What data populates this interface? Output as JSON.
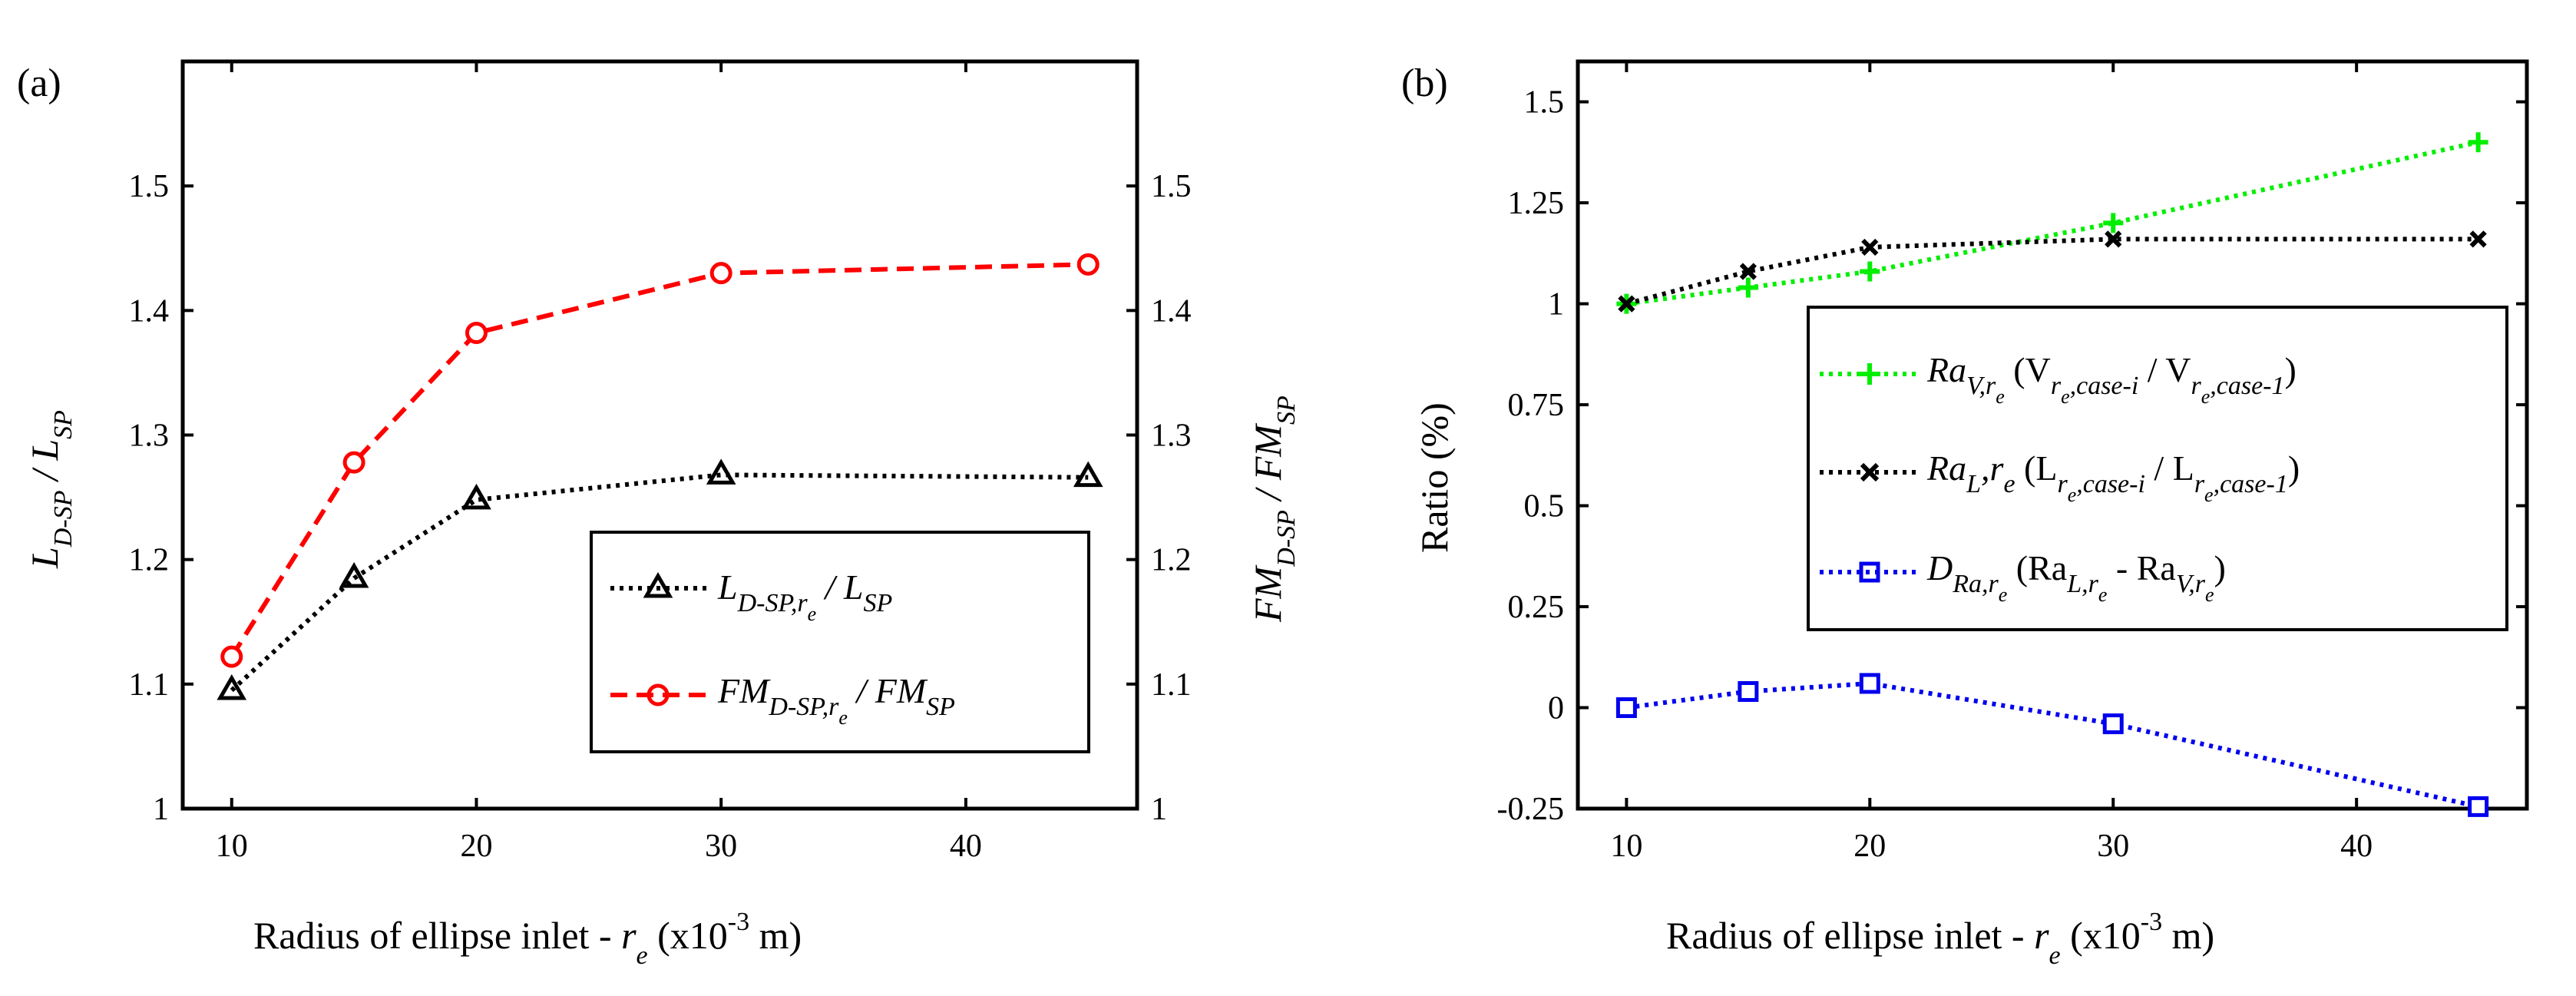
{
  "chart_data": [
    {
      "panel": "(a)",
      "type": "line",
      "x": [
        10,
        15,
        20,
        30,
        45
      ],
      "xlim": [
        8,
        47
      ],
      "xticks": [
        "10",
        "20",
        "30",
        "40"
      ],
      "xlabel": {
        "main": "Radius of ellipse inlet - ",
        "var": "r",
        "sub": "e",
        "unit": " (x10",
        "exp": "-3",
        "unit_end": " m)"
      },
      "ylim": [
        1,
        1.6
      ],
      "yticks": [
        "1",
        "1.1",
        "1.2",
        "1.3",
        "1.4",
        "1.5"
      ],
      "ylabel_left": {
        "main": "L",
        "sub": "D-SP",
        "rest": " / L",
        "sub2": "SP"
      },
      "ylabel_right": {
        "main": "FM",
        "sub": "D-SP",
        "rest": " / FM",
        "sub2": "SP"
      },
      "grid": false,
      "legend_position": "bottom-right",
      "series": [
        {
          "legend": {
            "main": "L",
            "sub": "D-SP,r",
            "subsub": "e",
            "rest": " / L",
            "sub2": "SP"
          },
          "values": [
            1.095,
            1.185,
            1.248,
            1.268,
            1.266
          ],
          "color": "#000000",
          "marker": "triangle",
          "dash": "dotted"
        },
        {
          "legend": {
            "main": "FM",
            "sub": "D-SP,r",
            "subsub": "e",
            "rest": " / FM",
            "sub2": "SP"
          },
          "values": [
            1.122,
            1.278,
            1.382,
            1.43,
            1.437
          ],
          "color": "#ff0000",
          "marker": "circle",
          "dash": "dashed"
        }
      ]
    },
    {
      "panel": "(b)",
      "type": "line",
      "x": [
        10,
        15,
        20,
        30,
        45
      ],
      "xlim": [
        8,
        47
      ],
      "xticks": [
        "10",
        "20",
        "30",
        "40"
      ],
      "xlabel": {
        "main": "Radius of ellipse inlet - ",
        "var": "r",
        "sub": "e",
        "unit": " (x10",
        "exp": "-3",
        "unit_end": " m)"
      },
      "ylim": [
        -0.25,
        1.6
      ],
      "yticks": [
        "-0.25",
        "0",
        "0.25",
        "0.5",
        "0.75",
        "1",
        "1.25",
        "1.5"
      ],
      "ylabel": "Ratio (%)",
      "grid": false,
      "legend_position": "middle-right",
      "series": [
        {
          "legend": {
            "main": "Ra",
            "sub": "V,r",
            "subsub": "e",
            "rest": " (V",
            "sub2": "r",
            "subsub2": "e",
            "sub2b": ",case-i",
            "rest2": " / V",
            "sub3": "r",
            "subsub3": "e",
            "sub3b": ",case-1",
            "rest3": ")"
          },
          "values": [
            1.0,
            1.04,
            1.08,
            1.2,
            1.4
          ],
          "color": "#00ee00",
          "marker": "plus",
          "dash": "dotted"
        },
        {
          "legend": {
            "main": "Ra",
            "sub": "L",
            "rest0": ",r",
            "sub0": "e",
            "rest": " (L",
            "sub2": "r",
            "subsub2": "e",
            "sub2b": ",case-i",
            "rest2": " / L",
            "sub3": "r",
            "subsub3": "e",
            "sub3b": ",case-1",
            "rest3": ")"
          },
          "values": [
            1.0,
            1.08,
            1.14,
            1.16,
            1.16
          ],
          "color": "#000000",
          "marker": "x",
          "dash": "dotted"
        },
        {
          "legend": {
            "main": "D",
            "sub": "Ra,r",
            "subsub": "e",
            "rest": " (Ra",
            "sub2": "L,r",
            "subsub2": "e",
            "rest2": " - Ra",
            "sub3": "V,r",
            "subsub3": "e",
            "rest3": ")"
          },
          "values": [
            0.0,
            0.04,
            0.06,
            -0.04,
            -0.245
          ],
          "color": "#0000ee",
          "marker": "square",
          "dash": "dotted"
        }
      ]
    }
  ]
}
